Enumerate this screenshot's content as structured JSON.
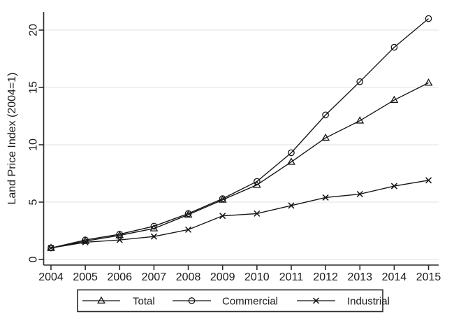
{
  "figure": {
    "background": "#ffffff",
    "axis_color": "#2b2b2b",
    "grid_color": "#ebebeb",
    "line_color": "#141414",
    "text_color": "#1a1a1a",
    "tick_font_size": 16,
    "legend_font_size": 15
  },
  "chart_data": {
    "type": "line",
    "title": "",
    "xlabel": "",
    "ylabel": "Land Price Index (2004=1)",
    "x": [
      2004,
      2005,
      2006,
      2007,
      2008,
      2009,
      2010,
      2011,
      2012,
      2013,
      2014,
      2015
    ],
    "xtick_labels": [
      "2004",
      "2005",
      "2006",
      "2007",
      "2008",
      "2009",
      "2010",
      "2011",
      "2012",
      "2013",
      "2014",
      "2015"
    ],
    "ylim": [
      0,
      21.6
    ],
    "yticks": [
      0,
      5,
      10,
      15,
      20
    ],
    "ytick_labels": [
      "0",
      "5",
      "10",
      "15",
      "20"
    ],
    "grid": true,
    "legend_position": "bottom-boxed",
    "series": [
      {
        "name": "Total",
        "marker": "triangle",
        "color": "#141414",
        "values": [
          1.0,
          1.6,
          2.1,
          2.7,
          3.9,
          5.2,
          6.5,
          8.5,
          10.6,
          12.1,
          13.9,
          15.4
        ]
      },
      {
        "name": "Commercial",
        "marker": "circle",
        "color": "#141414",
        "values": [
          1.0,
          1.7,
          2.2,
          2.9,
          4.0,
          5.3,
          6.8,
          9.3,
          12.6,
          15.5,
          18.5,
          21.0
        ]
      },
      {
        "name": "Industrial",
        "marker": "x",
        "color": "#141414",
        "values": [
          1.0,
          1.5,
          1.7,
          2.0,
          2.6,
          3.8,
          4.0,
          4.7,
          5.4,
          5.7,
          6.4,
          6.9
        ]
      }
    ]
  }
}
